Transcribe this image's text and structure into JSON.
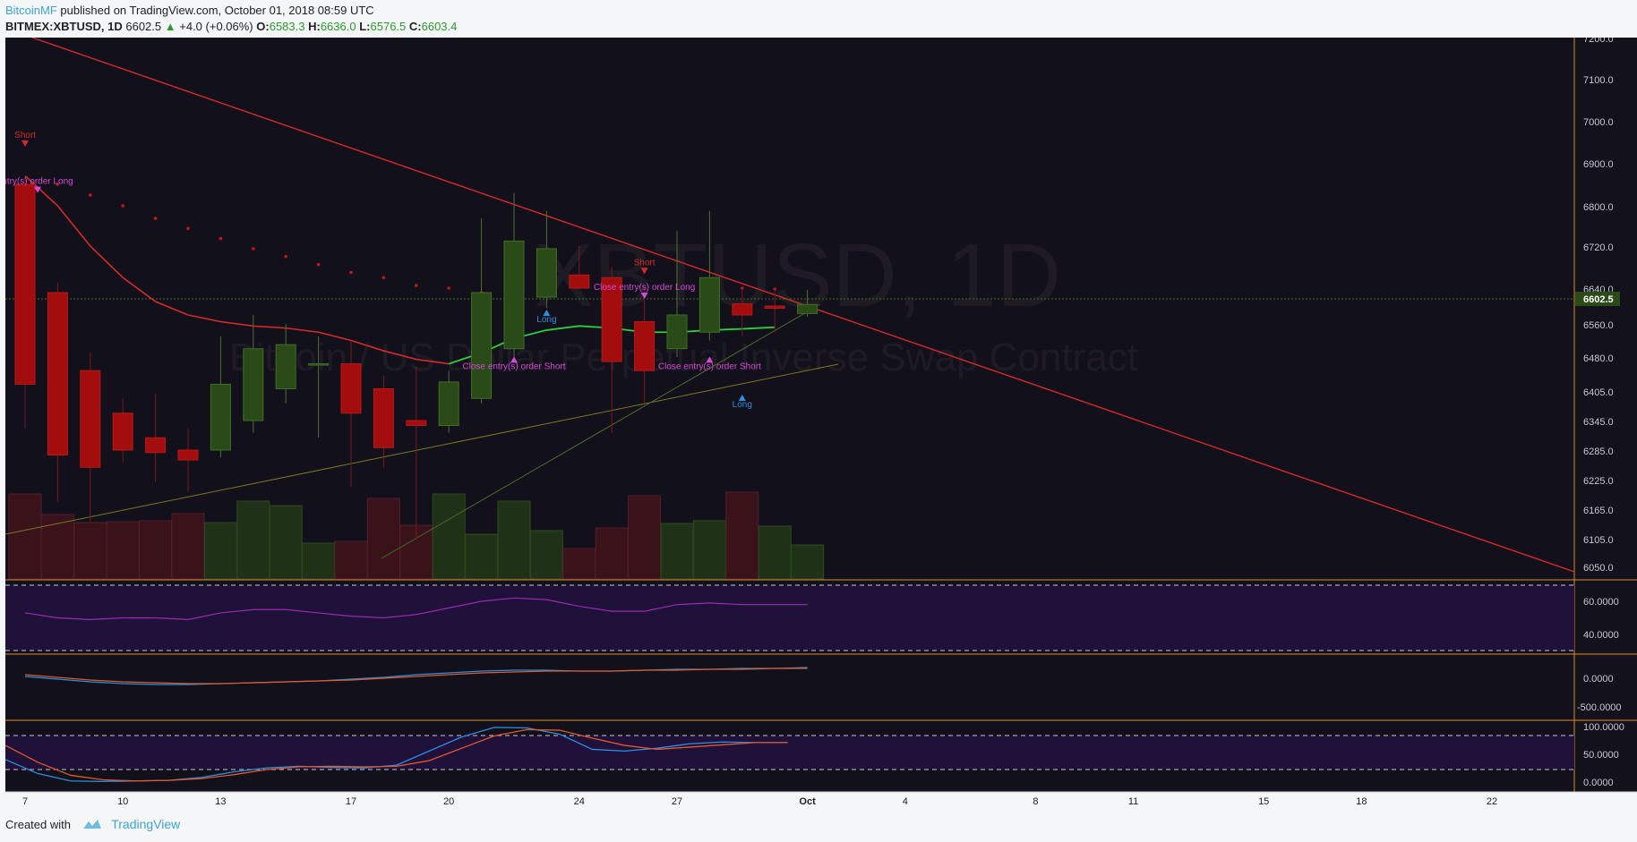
{
  "header": {
    "author": "BitcoinMF",
    "published": "published on TradingView.com, October 01, 2018 08:59 UTC",
    "symbol": "BITMEX:XBTUSD, 1D",
    "last": "6602.5",
    "change": "+4.0 (+0.06%)",
    "open_label": "O:",
    "open": "6583.3",
    "high_label": "H:",
    "high": "6636.0",
    "low_label": "L:",
    "low": "6576.5",
    "close_label": "C:",
    "close": "6603.4"
  },
  "watermark": {
    "symbol": "XBTUSD, 1D",
    "description": "Bitcoin / US Dollar Perpetual Inverse Swap Contract"
  },
  "footer": {
    "created_with": "Created with",
    "brand": "TradingView"
  },
  "colors": {
    "bg": "#12101a",
    "up": "#2a4a18",
    "up_border": "#3f6f24",
    "down": "#a30d0d",
    "trend": "#d42a2a",
    "ema_red": "#d42a2a",
    "ema_green": "#2ccf3a",
    "label_magenta": "#d44ad4",
    "label_blue": "#2a8fe0",
    "label_red": "#d42a2a",
    "orange_line": "#e08a2a",
    "panel_fill": "#20113a",
    "price_tag": "#2a4a18"
  },
  "chart_data": {
    "type": "candlestick",
    "symbol": "BITMEX:XBTUSD",
    "interval": "1D",
    "x_ticks": [
      "7",
      "10",
      "13",
      "17",
      "20",
      "24",
      "27",
      "Oct",
      "4",
      "8",
      "11",
      "15",
      "18",
      "22"
    ],
    "y_ticks": [
      "7200.0",
      "7100.0",
      "7000.0",
      "6900.0",
      "6800.0",
      "6720.0",
      "6640.0",
      "6560.0",
      "6480.0",
      "6405.0",
      "6345.0",
      "6285.0",
      "6225.0",
      "6165.0",
      "6105.0",
      "6050.0"
    ],
    "last_price_label": "6602.5",
    "candles": [
      {
        "date": "Sep 7",
        "o": 6850,
        "h": 6870,
        "l": 6330,
        "c": 6420
      },
      {
        "date": "Sep 8",
        "o": 6630,
        "h": 6650,
        "l": 6180,
        "c": 6275
      },
      {
        "date": "Sep 9",
        "o": 6450,
        "h": 6490,
        "l": 6140,
        "c": 6250
      },
      {
        "date": "Sep 10",
        "o": 6360,
        "h": 6390,
        "l": 6260,
        "c": 6285
      },
      {
        "date": "Sep 11",
        "o": 6310,
        "h": 6400,
        "l": 6220,
        "c": 6280
      },
      {
        "date": "Sep 12",
        "o": 6285,
        "h": 6330,
        "l": 6200,
        "c": 6265
      },
      {
        "date": "Sep 13",
        "o": 6285,
        "h": 6530,
        "l": 6270,
        "c": 6420
      },
      {
        "date": "Sep 14",
        "o": 6345,
        "h": 6580,
        "l": 6320,
        "c": 6500
      },
      {
        "date": "Sep 15",
        "o": 6410,
        "h": 6560,
        "l": 6380,
        "c": 6510
      },
      {
        "date": "Sep 16",
        "o": 6465,
        "h": 6530,
        "l": 6310,
        "c": 6465
      },
      {
        "date": "Sep 17",
        "o": 6465,
        "h": 6520,
        "l": 6210,
        "c": 6360
      },
      {
        "date": "Sep 18",
        "o": 6410,
        "h": 6440,
        "l": 6250,
        "c": 6290
      },
      {
        "date": "Sep 19",
        "o": 6345,
        "h": 6460,
        "l": 6105,
        "c": 6335
      },
      {
        "date": "Sep 20",
        "o": 6335,
        "h": 6450,
        "l": 6320,
        "c": 6425
      },
      {
        "date": "Sep 21",
        "o": 6390,
        "h": 6775,
        "l": 6380,
        "c": 6630
      },
      {
        "date": "Sep 22",
        "o": 6500,
        "h": 6830,
        "l": 6480,
        "c": 6730
      },
      {
        "date": "Sep 23",
        "o": 6620,
        "h": 6790,
        "l": 6595,
        "c": 6715
      },
      {
        "date": "Sep 24",
        "o": 6665,
        "h": 6720,
        "l": 6640,
        "c": 6640
      },
      {
        "date": "Sep 25",
        "o": 6660,
        "h": 6680,
        "l": 6320,
        "c": 6470
      },
      {
        "date": "Sep 26",
        "o": 6565,
        "h": 6640,
        "l": 6380,
        "c": 6450
      },
      {
        "date": "Sep 27",
        "o": 6500,
        "h": 6750,
        "l": 6480,
        "c": 6580
      },
      {
        "date": "Sep 28",
        "o": 6540,
        "h": 6790,
        "l": 6520,
        "c": 6660
      },
      {
        "date": "Sep 29",
        "o": 6605,
        "h": 6640,
        "l": 6530,
        "c": 6580
      },
      {
        "date": "Sep 30",
        "o": 6600,
        "h": 6640,
        "l": 6540,
        "c": 6595
      },
      {
        "date": "Oct 1",
        "o": 6583.3,
        "h": 6636.0,
        "l": 6576.5,
        "c": 6603.4
      }
    ],
    "volume_up": [
      false,
      false,
      false,
      false,
      false,
      false,
      true,
      true,
      true,
      true,
      false,
      false,
      false,
      true,
      true,
      true,
      true,
      false,
      false,
      false,
      true,
      true,
      false,
      true,
      true
    ],
    "annotations": [
      {
        "text": "Short",
        "color": "label_red",
        "arrow": "down",
        "date_index": 0,
        "price": 6930
      },
      {
        "text": "ntry(s) order Long",
        "color": "label_magenta",
        "arrow": "down",
        "date_index": 0,
        "price": 6880
      },
      {
        "text": "Long",
        "color": "label_blue",
        "arrow": "up",
        "date_index": 16,
        "price": 6600
      },
      {
        "text": "Close entry(s) order Short",
        "color": "label_magenta",
        "arrow": "up",
        "date_index": 15,
        "price": 6490
      },
      {
        "text": "Short",
        "color": "label_red",
        "arrow": "down",
        "date_index": 19,
        "price": 6660
      },
      {
        "text": "Close entry(s) order Long",
        "color": "label_magenta",
        "arrow": "down",
        "date_index": 19,
        "price": 6620
      },
      {
        "text": "Close entry(s) order Short",
        "color": "label_magenta",
        "arrow": "up",
        "date_index": 21,
        "price": 6490
      },
      {
        "text": "Long",
        "color": "label_blue",
        "arrow": "up",
        "date_index": 22,
        "price": 6405
      }
    ],
    "rsi_ticks": [
      "60.0000",
      "40.0000"
    ],
    "rsi_values": [
      53,
      50,
      49,
      50,
      50,
      49,
      53,
      55,
      55,
      53,
      51,
      50,
      52,
      56,
      60,
      62,
      61,
      57,
      54,
      54,
      58,
      59,
      58,
      58,
      58
    ],
    "macd_ticks": [
      "0.0000",
      "-500.0000"
    ],
    "stoch_ticks": [
      "100.0000",
      "50.0000",
      "0.0000"
    ],
    "stoch_k": [
      40,
      15,
      2,
      1,
      2,
      3,
      8,
      18,
      25,
      28,
      26,
      25,
      30,
      55,
      80,
      97,
      96,
      85,
      58,
      55,
      60,
      68,
      71,
      70,
      70
    ],
    "stoch_d": [
      65,
      35,
      12,
      4,
      2,
      3,
      6,
      13,
      22,
      27,
      28,
      27,
      28,
      38,
      60,
      82,
      93,
      92,
      78,
      65,
      58,
      62,
      66,
      70,
      70
    ]
  }
}
